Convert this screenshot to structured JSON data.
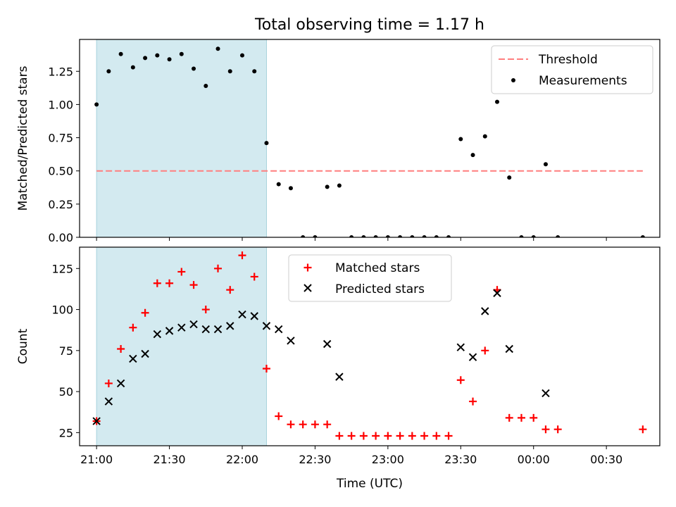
{
  "chart_data": [
    {
      "type": "scatter",
      "title": "Total observing time = 1.17 h",
      "ylabel": "Matched/Predicted stars",
      "xlabel": "",
      "xlim": [
        "20:53",
        "00:52"
      ],
      "ylim": [
        0,
        1.49
      ],
      "yticks": [
        0.0,
        0.25,
        0.5,
        0.75,
        1.0,
        1.25
      ],
      "ytick_labels": [
        "0.00",
        "0.25",
        "0.50",
        "0.75",
        "1.00",
        "1.25"
      ],
      "highlight_span": {
        "from": "21:00",
        "to": "22:10",
        "color": "#d3eaf0"
      },
      "legend": {
        "position": "upper right",
        "entries": [
          "Threshold",
          "Measurements"
        ]
      },
      "threshold": {
        "name": "Threshold",
        "value": 0.5,
        "from": "21:00",
        "to": "00:45",
        "color": "#ff7f7f",
        "style": "dashed"
      },
      "series": [
        {
          "name": "Measurements",
          "color": "#000000",
          "marker": "dot",
          "x": [
            "21:00",
            "21:05",
            "21:10",
            "21:15",
            "21:20",
            "21:25",
            "21:30",
            "21:35",
            "21:40",
            "21:45",
            "21:50",
            "21:55",
            "22:00",
            "22:05",
            "22:10",
            "22:15",
            "22:20",
            "22:25",
            "22:30",
            "22:35",
            "22:40",
            "22:45",
            "22:50",
            "22:55",
            "23:00",
            "23:05",
            "23:10",
            "23:15",
            "23:20",
            "23:25",
            "23:30",
            "23:35",
            "23:40",
            "23:45",
            "23:50",
            "23:55",
            "00:00",
            "00:05",
            "00:10",
            "00:45"
          ],
          "y": [
            1.0,
            1.25,
            1.38,
            1.28,
            1.35,
            1.37,
            1.34,
            1.38,
            1.27,
            1.14,
            1.42,
            1.25,
            1.37,
            1.25,
            0.71,
            0.4,
            0.37,
            0.0,
            0.0,
            0.38,
            0.39,
            0.0,
            0.0,
            0.0,
            0.0,
            0.0,
            0.0,
            0.0,
            0.0,
            0.0,
            0.74,
            0.62,
            0.76,
            1.02,
            0.45,
            0.0,
            0.0,
            0.55,
            0.0,
            0.0
          ]
        }
      ]
    },
    {
      "type": "scatter",
      "title": "",
      "ylabel": "Count",
      "xlabel": "Time (UTC)",
      "xlim": [
        "20:53",
        "00:52"
      ],
      "ylim": [
        17,
        138
      ],
      "xticks": [
        "21:00",
        "21:30",
        "22:00",
        "22:30",
        "23:00",
        "23:30",
        "00:00",
        "00:30"
      ],
      "yticks": [
        25,
        50,
        75,
        100,
        125
      ],
      "highlight_span": {
        "from": "21:00",
        "to": "22:10",
        "color": "#d3eaf0"
      },
      "legend": {
        "position": "upper center",
        "entries": [
          "Matched stars",
          "Predicted stars"
        ]
      },
      "series": [
        {
          "name": "Matched stars",
          "color": "#ff0000",
          "marker": "plus",
          "x": [
            "21:00",
            "21:05",
            "21:10",
            "21:15",
            "21:20",
            "21:25",
            "21:30",
            "21:35",
            "21:40",
            "21:45",
            "21:50",
            "21:55",
            "22:00",
            "22:05",
            "22:10",
            "22:15",
            "22:20",
            "22:25",
            "22:30",
            "22:35",
            "22:40",
            "22:45",
            "22:50",
            "22:55",
            "23:00",
            "23:05",
            "23:10",
            "23:15",
            "23:20",
            "23:25",
            "23:30",
            "23:35",
            "23:40",
            "23:45",
            "23:50",
            "23:55",
            "00:00",
            "00:05",
            "00:10",
            "00:45"
          ],
          "y": [
            32,
            55,
            76,
            89,
            98,
            116,
            116,
            123,
            115,
            100,
            125,
            112,
            133,
            120,
            64,
            35,
            30,
            30,
            30,
            30,
            23,
            23,
            23,
            23,
            23,
            23,
            23,
            23,
            23,
            23,
            57,
            44,
            75,
            112,
            34,
            34,
            34,
            27,
            27,
            27
          ]
        },
        {
          "name": "Predicted stars",
          "color": "#000000",
          "marker": "x",
          "x": [
            "21:00",
            "21:05",
            "21:10",
            "21:15",
            "21:20",
            "21:25",
            "21:30",
            "21:35",
            "21:40",
            "21:45",
            "21:50",
            "21:55",
            "22:00",
            "22:05",
            "22:10",
            "22:15",
            "22:20",
            "22:35",
            "22:40",
            "23:30",
            "23:35",
            "23:40",
            "23:45",
            "23:50",
            "00:05"
          ],
          "y": [
            32,
            44,
            55,
            70,
            73,
            85,
            87,
            89,
            91,
            88,
            88,
            90,
            97,
            96,
            90,
            88,
            81,
            79,
            59,
            77,
            71,
            99,
            110,
            76,
            49
          ]
        }
      ]
    }
  ]
}
